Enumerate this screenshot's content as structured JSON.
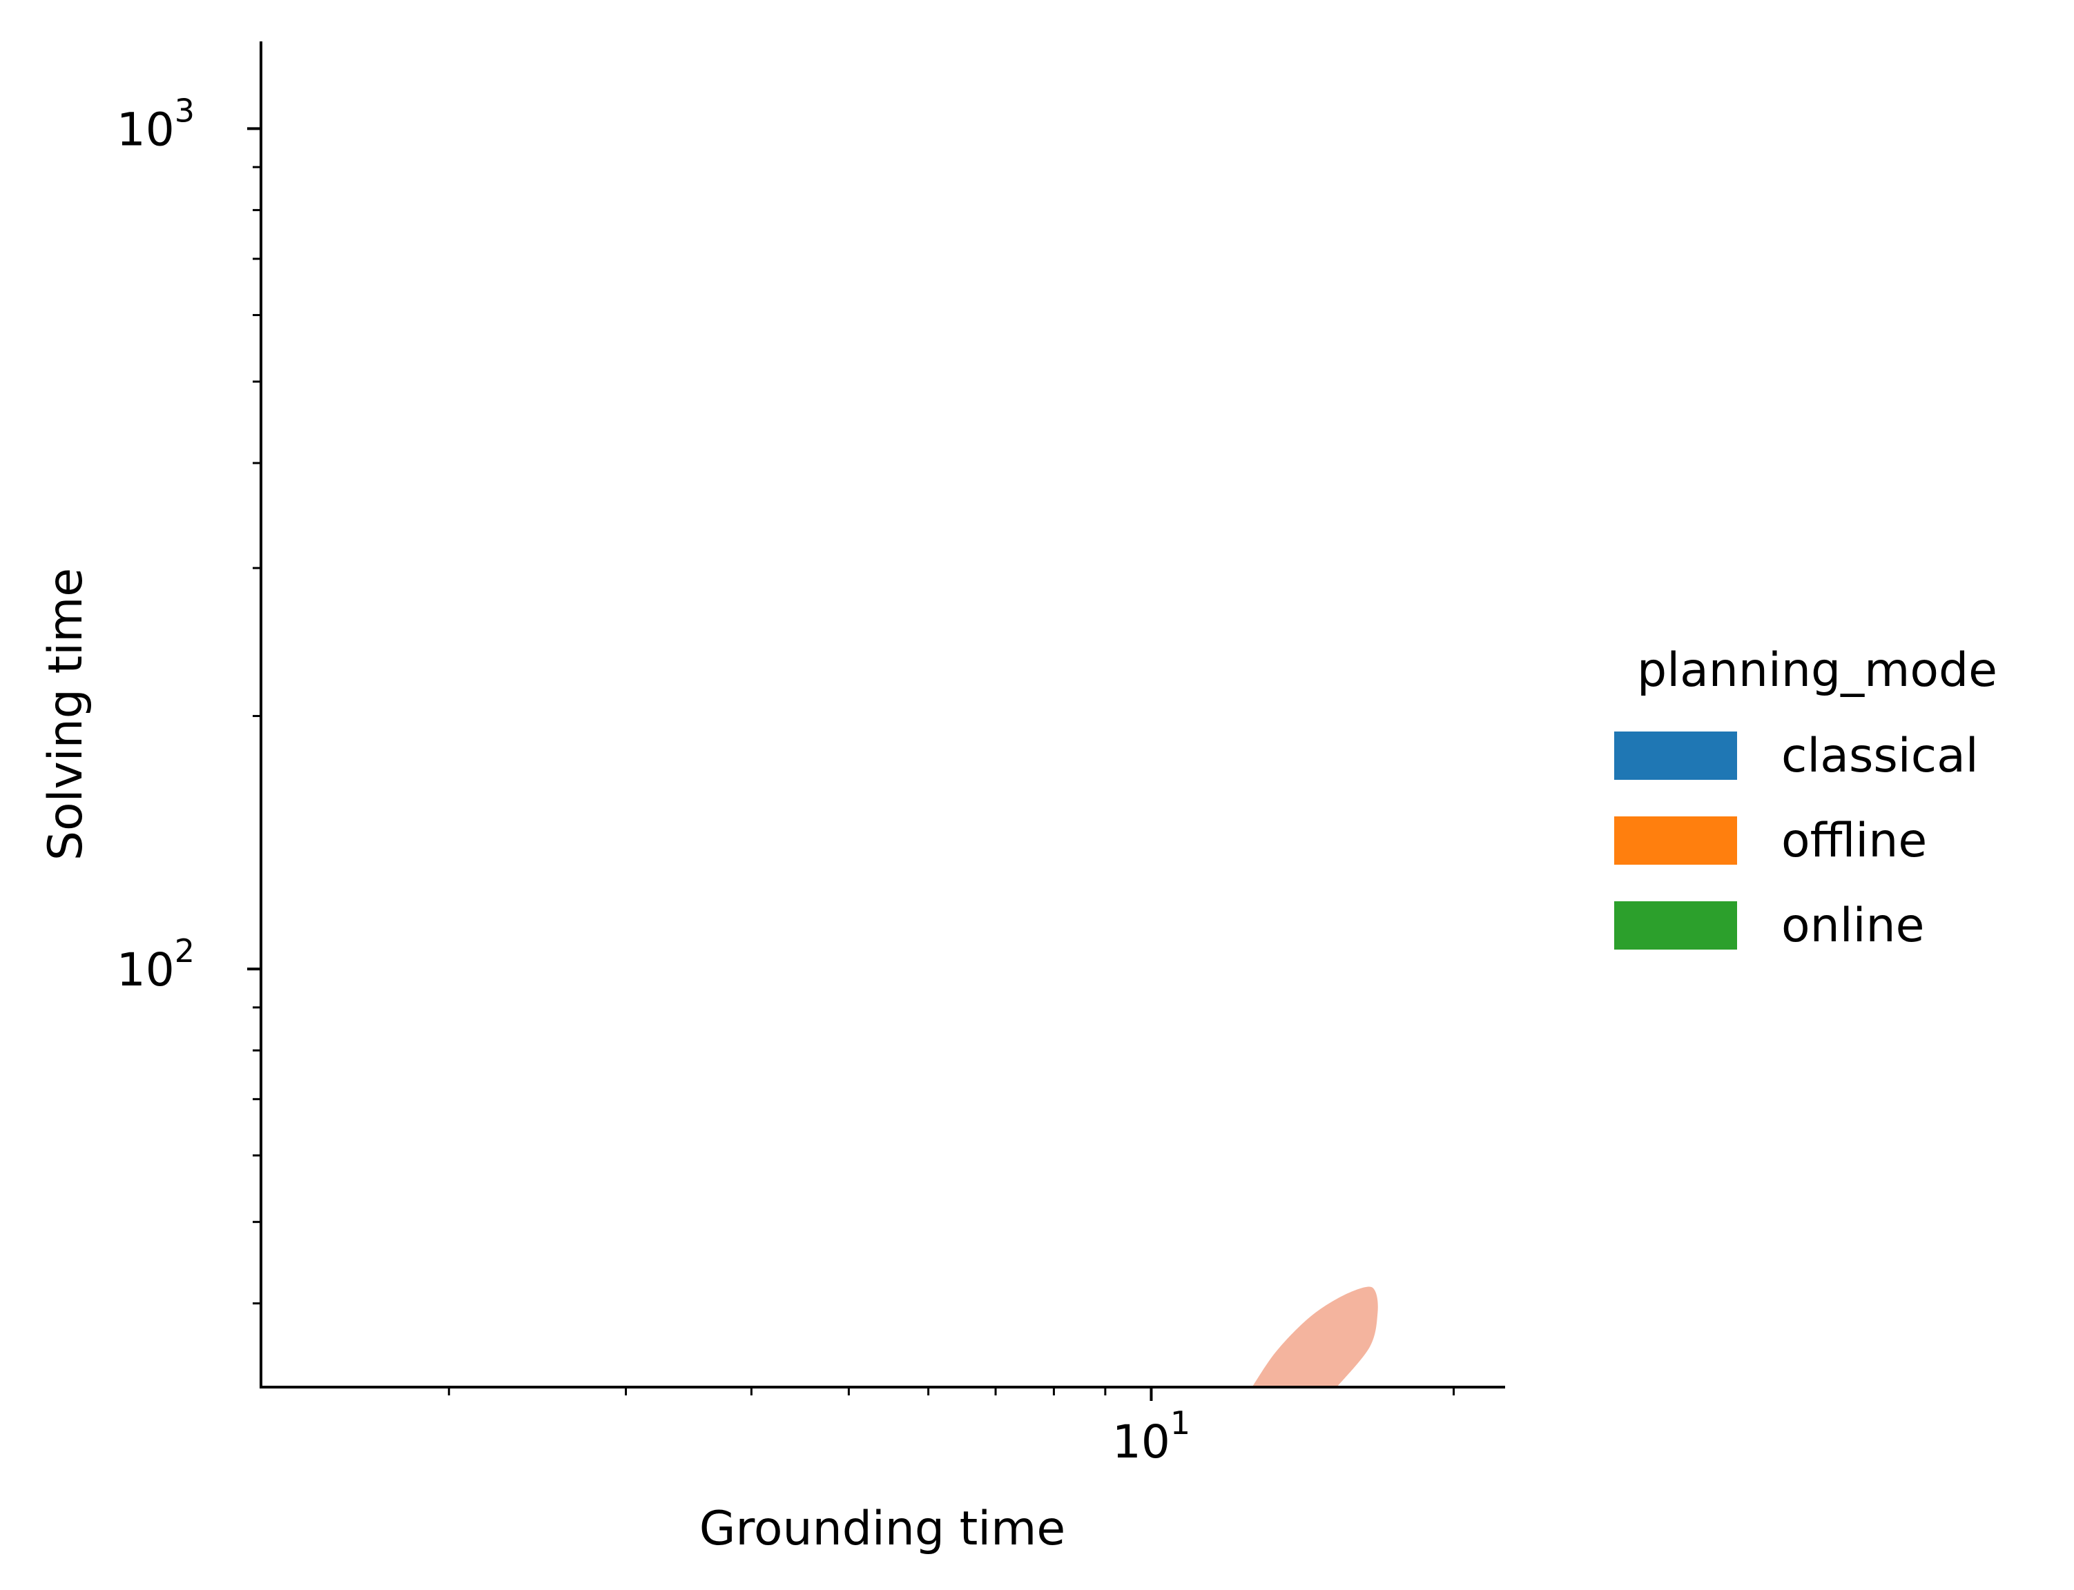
{
  "chart_data": {
    "type": "kde-contour",
    "xlabel": "Grounding time",
    "ylabel": "Solving time",
    "xscale": "log",
    "yscale": "log",
    "xlim": [
      1.3,
      22.5
    ],
    "ylim": [
      31.8,
      1270
    ],
    "x_major_ticks": [
      {
        "value": 10,
        "base": "10",
        "exp": "1"
      }
    ],
    "x_minor_ticks": [
      2,
      3,
      4,
      5,
      6,
      7,
      8,
      9,
      20
    ],
    "y_major_ticks": [
      {
        "value": 100,
        "base": "10",
        "exp": "2"
      },
      {
        "value": 1000,
        "base": "10",
        "exp": "3"
      }
    ],
    "y_minor_ticks": [
      40,
      50,
      60,
      70,
      80,
      90,
      200,
      300,
      400,
      500,
      600,
      700,
      800,
      900
    ],
    "grid": false,
    "legend": {
      "title": "planning_mode",
      "placement": "right",
      "entries": [
        {
          "label": "classical",
          "color": "#1f77b4"
        },
        {
          "label": "offline",
          "color": "#ff7f0e"
        },
        {
          "label": "online",
          "color": "#2ca02c"
        }
      ]
    },
    "series": [
      {
        "name": "offline",
        "color": "#f4b49e",
        "contour": [
          [
            12.6,
            31.8
          ],
          [
            13.3,
            35.0
          ],
          [
            14.3,
            38.3
          ],
          [
            15.3,
            40.5
          ],
          [
            16.3,
            41.8
          ],
          [
            16.7,
            41.4
          ],
          [
            16.8,
            39.0
          ],
          [
            16.5,
            35.5
          ],
          [
            15.3,
            31.8
          ]
        ]
      }
    ]
  }
}
